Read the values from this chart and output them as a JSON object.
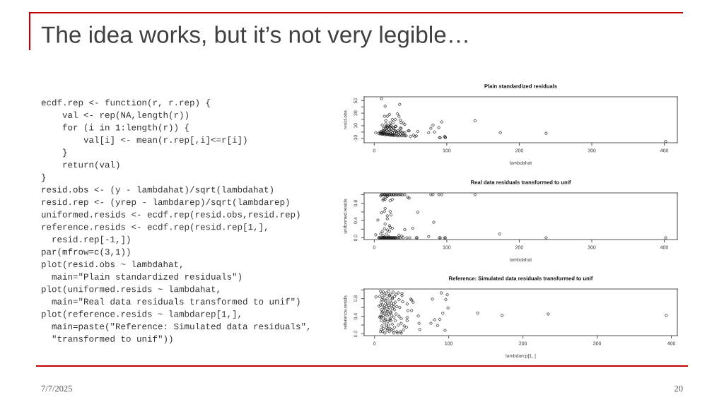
{
  "chart_data": [
    {
      "type": "other",
      "title": "The idea works, but it’s not very legible…",
      "annotations": [
        "ecdf.rep <- function(r, r.rep) {",
        "    val <- rep(NA,length(r))",
        "    for (i in 1:length(r)) {",
        "        val[i] <- mean(r.rep[,i]<=r[i])",
        "    }",
        "    return(val)",
        "}",
        "resid.obs <- (y - lambdahat)/sqrt(lambdahat)",
        "resid.rep <- (yrep - lambdarep)/sqrt(lambdarep)",
        "uniformed.resids <- ecdf.rep(resid.obs,resid.rep)",
        "reference.resids <- ecdf.rep(resid.rep[1,],",
        "  resid.rep[-1,])",
        "par(mfrow=c(3,1))",
        "plot(resid.obs ~ lambdahat,",
        "  main=\"Plain standardized residuals\")",
        "plot(uniformed.resids ~ lambdahat,",
        "  main=\"Real data residuals transformed to unif\")",
        "plot(reference.resids ~ lambdarep[1,],",
        "  main=paste(\"Reference: Simulated data residuals\",",
        "  \"transformed to unif\"))"
      ]
    },
    {
      "type": "scatter",
      "title": "Plain standardized residuals",
      "xlabel": "lambdahat",
      "ylabel": "resid.obs",
      "color": "#000000",
      "marker": "circle",
      "xlim": [
        -14,
        418
      ],
      "ylim": [
        -17,
        56
      ],
      "xticks": [
        0,
        100,
        200,
        300,
        400
      ],
      "yticks": [
        -10,
        {
          "value": 0,
          "label": null
        },
        10,
        {
          "value": 20,
          "label": null
        },
        30,
        {
          "value": 40,
          "label": null
        },
        50
      ],
      "x": [
        2,
        10,
        15,
        35,
        14,
        18,
        21,
        32,
        34,
        25,
        29,
        36,
        16,
        22,
        26,
        37,
        40,
        42,
        11,
        16,
        36,
        37,
        29,
        23,
        18,
        47,
        48,
        42,
        44,
        50,
        54,
        60,
        56,
        58,
        75,
        78,
        81,
        83,
        89,
        93,
        90,
        91,
        97,
        98,
        98,
        139,
        174,
        237,
        402,
        6,
        8,
        9,
        10,
        11,
        12,
        13,
        14,
        15,
        16,
        17,
        18,
        19,
        20,
        21,
        22,
        23,
        24,
        25,
        26,
        27,
        28,
        30,
        32,
        33,
        35,
        36,
        38,
        40,
        42,
        8,
        10,
        11,
        12,
        13,
        14,
        15,
        16,
        17,
        18,
        19,
        20,
        21,
        22,
        23,
        24,
        25,
        26,
        27,
        28,
        29,
        30,
        31,
        33,
        34,
        36,
        38,
        40,
        15,
        17,
        19,
        21,
        13,
        23,
        26,
        30
      ],
      "values": [
        -1,
        53,
        41,
        44,
        25,
        25,
        28,
        29,
        25,
        20,
        20,
        19,
        18,
        15,
        15,
        15,
        14,
        12,
        11,
        13,
        6,
        6,
        9,
        10,
        8,
        2,
        2,
        -1,
        -6,
        -7,
        -5,
        1,
        -7,
        -6,
        -1,
        6,
        11,
        0,
        7,
        16,
        -9,
        -9,
        -7,
        -9,
        -8,
        18,
        -1,
        -2,
        -15,
        -2,
        -3,
        -2,
        -3,
        -3,
        -3,
        -2,
        -4,
        -3,
        -4,
        -3,
        -4,
        -3,
        -4,
        -4,
        -5,
        -3,
        -5,
        -4,
        -5,
        -5,
        -5,
        -5,
        -6,
        -4,
        -6,
        -3,
        -6,
        -5,
        -6,
        0,
        1,
        -1,
        2,
        0,
        3,
        1,
        5,
        2,
        7,
        0,
        4,
        2,
        8,
        1,
        5,
        -1,
        3,
        6,
        0,
        2,
        1,
        -2,
        2,
        0,
        1,
        0,
        -2,
        8,
        9,
        10,
        9,
        6,
        10,
        7,
        9
      ]
    },
    {
      "type": "scatter",
      "title": "Real data residuals transformed to unif",
      "xlabel": "lambdahat",
      "ylabel": "uniformed.resids",
      "color": "#000000",
      "marker": "circle",
      "xlim": [
        -14,
        418
      ],
      "ylim": [
        -0.04,
        1.04
      ],
      "xticks": [
        0,
        100,
        200,
        300,
        400
      ],
      "yticks": [
        {
          "value": 0,
          "label": "0.0"
        },
        {
          "value": 0.2,
          "label": null
        },
        0.4,
        {
          "value": 0.6,
          "label": null
        },
        0.8,
        {
          "value": 1,
          "label": null
        }
      ],
      "x": [
        10,
        11,
        13,
        14,
        15,
        17,
        18,
        20,
        21,
        23,
        24,
        26,
        27,
        29,
        31,
        33,
        35,
        37,
        39,
        42,
        78,
        81,
        89,
        93,
        139,
        9,
        18,
        46,
        48,
        12,
        15,
        22,
        25,
        13,
        16,
        15,
        14,
        22,
        10,
        60,
        23,
        18,
        18,
        5,
        82,
        15,
        21,
        22,
        25,
        14,
        53,
        42,
        18,
        21,
        11,
        17,
        2,
        9,
        173,
        75,
        34,
        38,
        12,
        20,
        14,
        6,
        7,
        8,
        9,
        10,
        11,
        12,
        13,
        14,
        15,
        16,
        17,
        18,
        19,
        20,
        21,
        22,
        23,
        24,
        25,
        26,
        27,
        28,
        29,
        30,
        32,
        34,
        36,
        40,
        45,
        49,
        58,
        59,
        90,
        91,
        97,
        98,
        237,
        402
      ],
      "values": [
        1,
        1,
        1,
        1,
        1,
        1,
        1,
        1,
        1,
        1,
        1,
        1,
        1,
        1,
        1,
        1,
        1,
        1,
        1,
        1,
        1,
        1,
        1,
        1,
        1,
        0.97,
        0.96,
        0.94,
        0.92,
        0.87,
        0.89,
        0.86,
        0.89,
        0.9,
        0.95,
        0.68,
        0.61,
        0.61,
        0.58,
        0.59,
        0.53,
        0.51,
        0.44,
        0.41,
        0.36,
        0.32,
        0.28,
        0.24,
        0.22,
        0.21,
        0.22,
        0.19,
        0.18,
        0.15,
        0.14,
        0.09,
        0.07,
        0.09,
        0.09,
        0.03,
        0.06,
        0.04,
        0.05,
        0.03,
        0.02,
        0,
        0,
        0,
        0,
        0,
        0,
        0,
        0,
        0,
        0,
        0,
        0,
        0,
        0,
        0,
        0,
        0,
        0,
        0,
        0,
        0,
        0,
        0,
        0,
        0,
        0,
        0,
        0,
        0,
        0,
        0,
        0,
        0,
        0,
        0,
        0,
        0,
        0,
        0
      ]
    },
    {
      "type": "scatter",
      "title": "Reference: Simulated data residuals transformed to unif",
      "xlabel": "lambdarep[1, ]",
      "ylabel": "reference.resids",
      "color": "#000000",
      "marker": "circle",
      "xlim": [
        -14,
        408
      ],
      "ylim": [
        -0.04,
        1.02
      ],
      "xticks": [
        0,
        100,
        200,
        300,
        400
      ],
      "yticks": [
        {
          "value": 0,
          "label": "0.0"
        },
        {
          "value": 0.2,
          "label": null
        },
        0.4,
        {
          "value": 0.6,
          "label": null
        },
        0.8,
        {
          "value": 1,
          "label": null
        }
      ],
      "x": [
        2,
        6,
        7,
        8,
        8,
        8,
        9,
        9,
        9,
        10,
        10,
        10,
        11,
        11,
        11,
        12,
        12,
        12,
        13,
        13,
        13,
        14,
        14,
        14,
        15,
        15,
        15,
        16,
        16,
        16,
        17,
        17,
        17,
        18,
        18,
        18,
        19,
        19,
        19,
        20,
        20,
        20,
        21,
        21,
        21,
        22,
        22,
        22,
        23,
        23,
        23,
        24,
        24,
        24,
        25,
        25,
        26,
        26,
        27,
        27,
        27,
        28,
        28,
        29,
        29,
        30,
        30,
        32,
        31,
        26,
        32,
        33,
        33,
        34,
        35,
        36,
        36,
        36,
        37,
        37,
        38,
        39,
        40,
        43,
        44,
        44,
        44,
        45,
        50,
        49,
        50,
        52,
        59,
        60,
        61,
        76,
        78,
        81,
        85,
        88,
        90,
        92,
        95,
        96,
        98,
        99,
        139,
        172,
        234,
        393,
        9,
        11,
        13,
        15,
        17,
        19,
        21,
        23,
        12,
        14,
        16,
        18,
        20,
        22,
        24,
        26,
        10,
        8,
        7,
        9
      ],
      "values": [
        0.84,
        0.63,
        0.85,
        0.97,
        0.4,
        0.05,
        0.55,
        0.72,
        0.3,
        0.92,
        0.18,
        0.48,
        0.05,
        0.66,
        0.83,
        0.36,
        0.95,
        0.12,
        0.58,
        0.25,
        0.77,
        0.45,
        0.88,
        0.02,
        0.68,
        0.33,
        0.52,
        0.15,
        0.93,
        0.62,
        0.41,
        0.8,
        0.08,
        0.28,
        0.55,
        0.7,
        0.97,
        0.2,
        0.45,
        0.86,
        0.6,
        0.05,
        0.35,
        0.75,
        0.12,
        0.5,
        0.9,
        0.3,
        0.65,
        0.1,
        0.42,
        0.82,
        0.57,
        0.22,
        0.95,
        0.07,
        0.68,
        0.38,
        0.85,
        0.15,
        0.55,
        0.72,
        0.3,
        0.9,
        0.45,
        0.62,
        0.05,
        0.93,
        0.02,
        0.02,
        0.2,
        0.78,
        0.4,
        0.6,
        0.05,
        0.02,
        0.35,
        0.24,
        0.92,
        0.87,
        0.73,
        0.09,
        0.18,
        0.15,
        0.3,
        0.37,
        0.68,
        0.53,
        0.53,
        0.79,
        0.77,
        0.72,
        0.41,
        0.24,
        0.1,
        0.24,
        0.79,
        0.32,
        0.19,
        0.33,
        0.93,
        0.47,
        0.08,
        0.78,
        0.89,
        0.59,
        0.47,
        0.42,
        0.45,
        0.42,
        0.38,
        0.5,
        0.6,
        0.75,
        0.5,
        0.65,
        0.32,
        0.7,
        0.42,
        0.3,
        0.2,
        0.12,
        0.88,
        0.48,
        0.8,
        0.62,
        0.78,
        0.65,
        0.38,
        0.1
      ]
    },
    {
      "type": "other",
      "annotations": [
        "7/7/2025",
        "20"
      ]
    }
  ]
}
